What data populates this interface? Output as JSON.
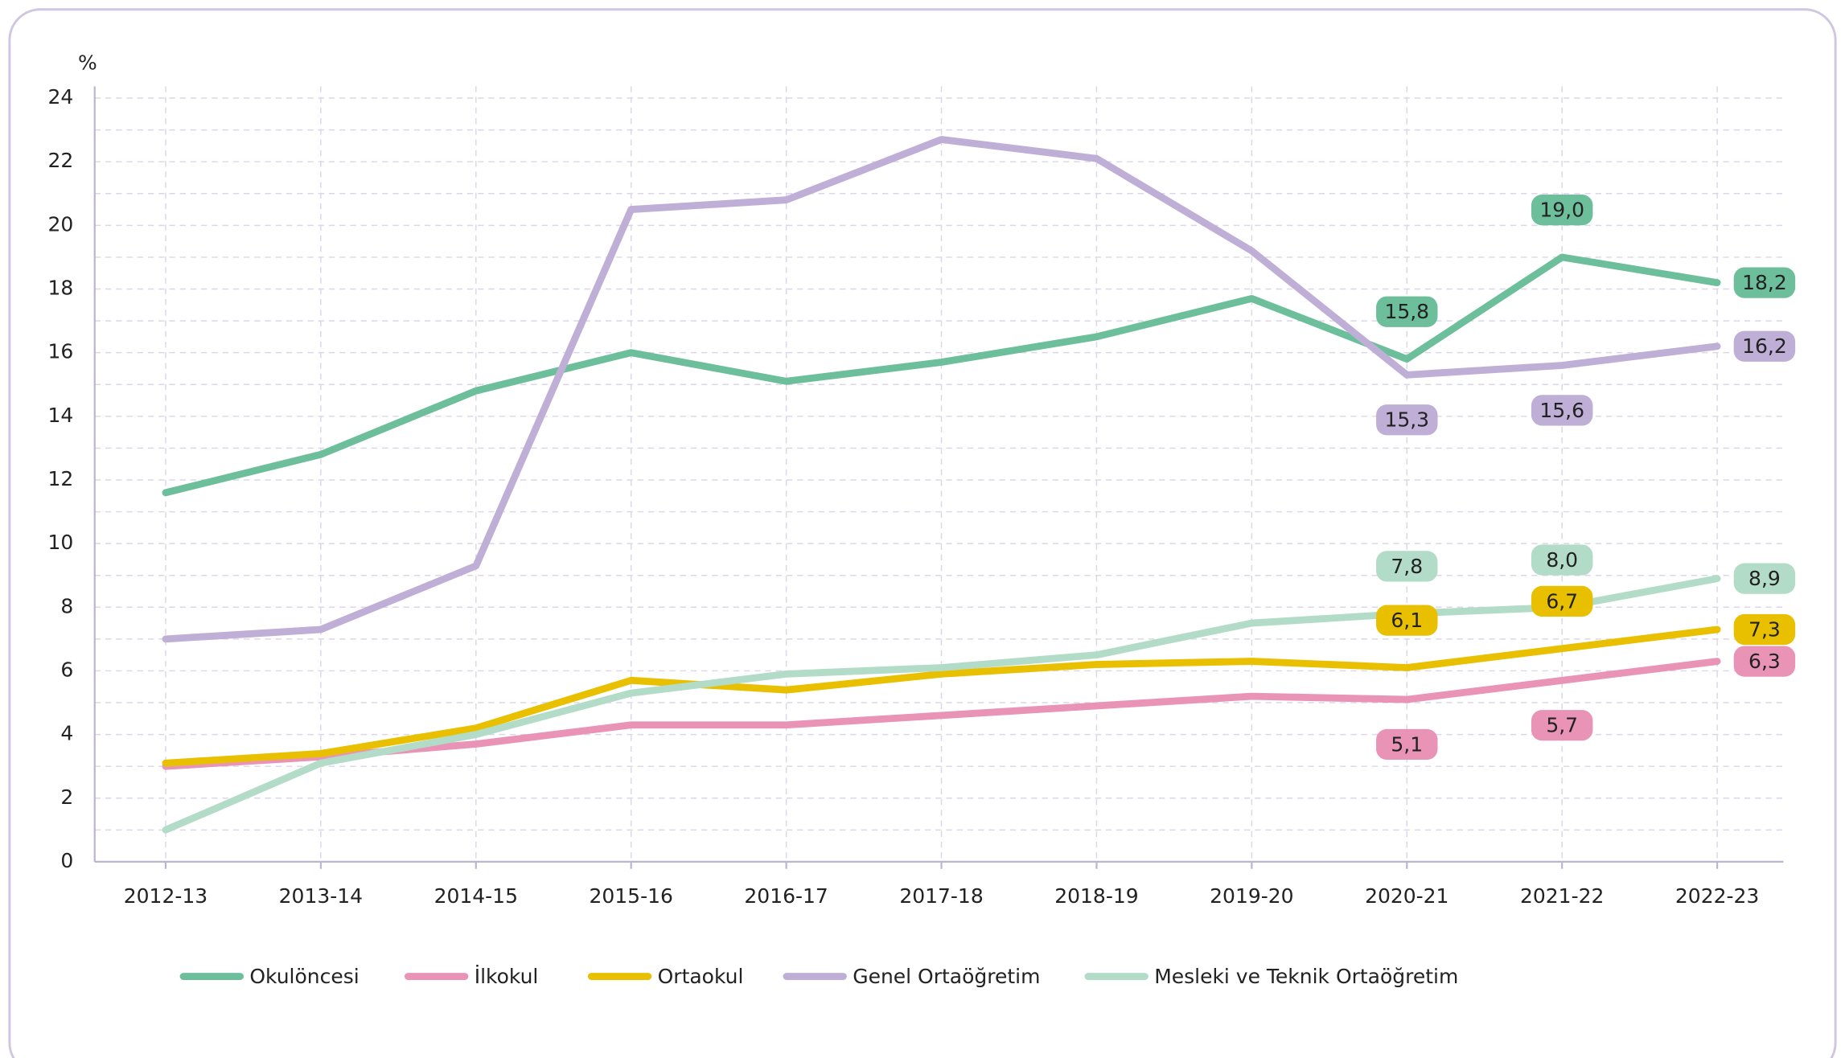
{
  "chart_data": {
    "type": "line",
    "y_label": "%",
    "categories": [
      "2012-13",
      "2013-14",
      "2014-15",
      "2015-16",
      "2016-17",
      "2017-18",
      "2018-19",
      "2019-20",
      "2020-21",
      "2021-22",
      "2022-23"
    ],
    "ylim": [
      0,
      24
    ],
    "yticks": [
      0,
      2,
      4,
      6,
      8,
      10,
      12,
      14,
      16,
      18,
      20,
      22,
      24
    ],
    "grid": true,
    "legend": "bottom",
    "series": [
      {
        "name": "Okulöncesi",
        "color": "#6dbf9c",
        "values": [
          11.6,
          12.8,
          14.8,
          16.0,
          15.1,
          15.7,
          16.5,
          17.7,
          15.8,
          19.0,
          18.2
        ],
        "value_labels": [
          null,
          null,
          null,
          null,
          null,
          null,
          null,
          null,
          "15,8",
          "19,0",
          "18,2"
        ]
      },
      {
        "name": "İlkokul",
        "color": "#e993b6",
        "values": [
          3.0,
          3.3,
          3.7,
          4.3,
          4.3,
          4.6,
          4.9,
          5.2,
          5.1,
          5.7,
          6.3
        ],
        "value_labels": [
          null,
          null,
          null,
          null,
          null,
          null,
          null,
          null,
          "5,1",
          "5,7",
          "6,3"
        ]
      },
      {
        "name": "Ortaokul",
        "color": "#e8c000",
        "values": [
          3.1,
          3.4,
          4.2,
          5.7,
          5.4,
          5.9,
          6.2,
          6.3,
          6.1,
          6.7,
          7.3
        ],
        "value_labels": [
          null,
          null,
          null,
          null,
          null,
          null,
          null,
          null,
          "6,1",
          "6,7",
          "7,3"
        ]
      },
      {
        "name": "Genel Ortaöğretim",
        "color": "#bfaed6",
        "values": [
          7.0,
          7.3,
          9.3,
          20.5,
          20.8,
          22.7,
          22.1,
          19.2,
          15.3,
          15.6,
          16.2
        ],
        "value_labels": [
          null,
          null,
          null,
          null,
          null,
          null,
          null,
          null,
          "15,3",
          "15,6",
          "16,2"
        ]
      },
      {
        "name": "Mesleki ve Teknik Ortaöğretim",
        "color": "#b3dcc8",
        "values": [
          1.0,
          3.1,
          4.0,
          5.3,
          5.9,
          6.1,
          6.5,
          7.5,
          7.8,
          8.0,
          8.9
        ],
        "value_labels": [
          null,
          null,
          null,
          null,
          null,
          null,
          null,
          null,
          "7,8",
          "8,0",
          "8,9"
        ]
      }
    ]
  }
}
